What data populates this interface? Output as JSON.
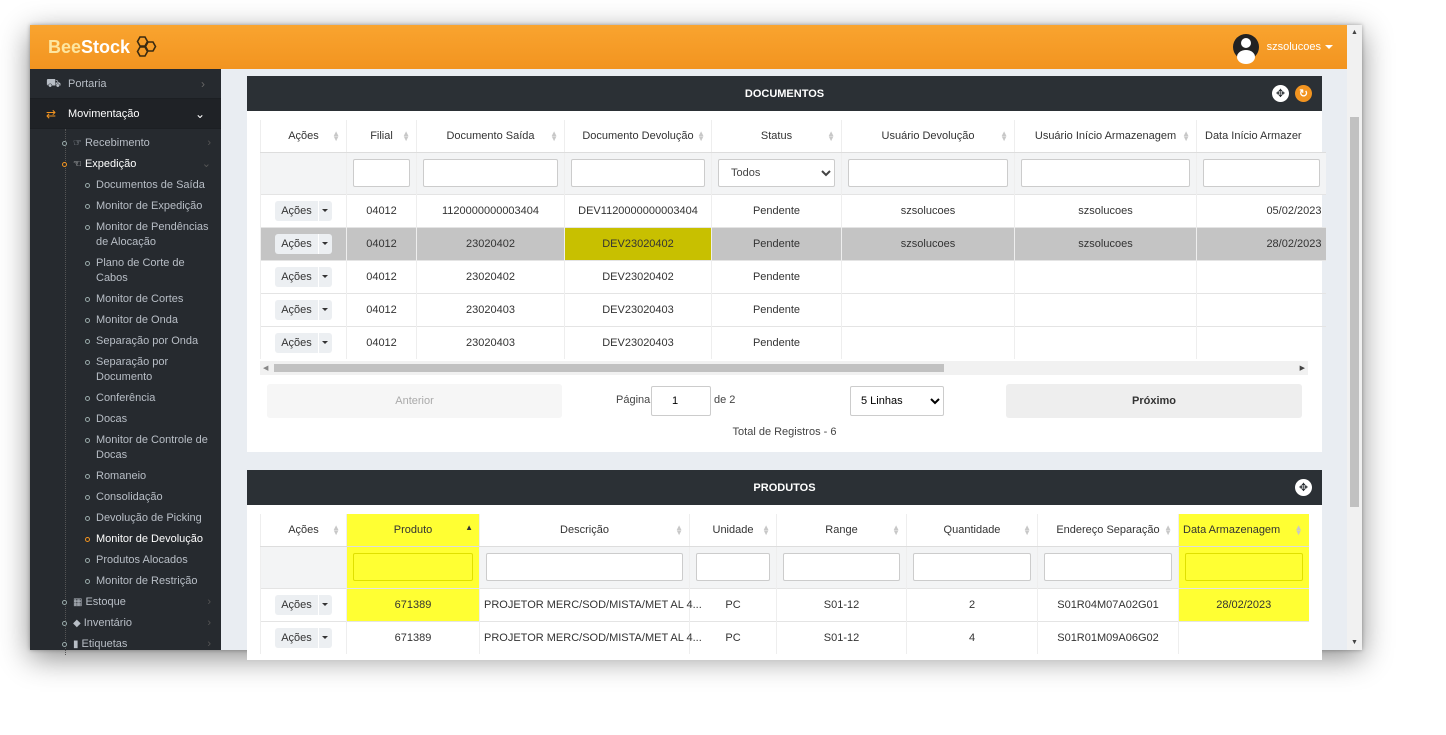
{
  "app": {
    "logo_bee": "Bee",
    "logo_stock": "Stock",
    "user": "szsolucoes"
  },
  "sidebar": {
    "portaria": "Portaria",
    "movimentacao": "Movimentação",
    "recebimento": "Recebimento",
    "expedicao": "Expedição",
    "items": [
      "Documentos de Saída",
      "Monitor de Expedição",
      "Monitor de Pendências de Alocação",
      "Plano de Corte de Cabos",
      "Monitor de Cortes",
      "Monitor de Onda",
      "Separação por Onda",
      "Separação por Documento",
      "Conferência",
      "Docas",
      "Monitor de Controle de Docas",
      "Romaneio",
      "Consolidação",
      "Devolução de Picking",
      "Monitor de Devolução",
      "Produtos Alocados",
      "Monitor de Restrição"
    ],
    "estoque": "Estoque",
    "inventario": "Inventário",
    "etiquetas": "Etiquetas"
  },
  "documentos": {
    "title": "DOCUMENTOS",
    "columns": [
      "Ações",
      "Filial",
      "Documento Saída",
      "Documento Devolução",
      "Status",
      "Usuário Devolução",
      "Usuário Início Armazenagem",
      "Data Início Armazer"
    ],
    "status_filter": "Todos",
    "rows": [
      {
        "acoes": "Ações",
        "filial": "04012",
        "doc_saida": "1120000000003404",
        "doc_dev": "DEV1120000000003404",
        "status": "Pendente",
        "usr_dev": "szsolucoes",
        "usr_ini": "szsolucoes",
        "data": "05/02/2023"
      },
      {
        "acoes": "Ações",
        "filial": "04012",
        "doc_saida": "23020402",
        "doc_dev": "DEV23020402",
        "status": "Pendente",
        "usr_dev": "szsolucoes",
        "usr_ini": "szsolucoes",
        "data": "28/02/2023"
      },
      {
        "acoes": "Ações",
        "filial": "04012",
        "doc_saida": "23020402",
        "doc_dev": "DEV23020402",
        "status": "Pendente",
        "usr_dev": "",
        "usr_ini": "",
        "data": ""
      },
      {
        "acoes": "Ações",
        "filial": "04012",
        "doc_saida": "23020403",
        "doc_dev": "DEV23020403",
        "status": "Pendente",
        "usr_dev": "",
        "usr_ini": "",
        "data": ""
      },
      {
        "acoes": "Ações",
        "filial": "04012",
        "doc_saida": "23020403",
        "doc_dev": "DEV23020403",
        "status": "Pendente",
        "usr_dev": "",
        "usr_ini": "",
        "data": ""
      }
    ],
    "pager": {
      "prev": "Anterior",
      "page_label": "Página",
      "page": "1",
      "of": "de 2",
      "lines": "5 Linhas",
      "next": "Próximo",
      "total": "Total de Registros - 6"
    }
  },
  "produtos": {
    "title": "PRODUTOS",
    "columns": [
      "Ações",
      "Produto",
      "Descrição",
      "Unidade",
      "Range",
      "Quantidade",
      "Endereço Separação",
      "Data Armazenagem"
    ],
    "rows": [
      {
        "acoes": "Ações",
        "produto": "671389",
        "descricao": "PROJETOR MERC/SOD/MISTA/MET AL 4...",
        "unidade": "PC",
        "range": "S01-12",
        "quantidade": "2",
        "endereco": "S01R04M07A02G01",
        "data": "28/02/2023"
      },
      {
        "acoes": "Ações",
        "produto": "671389",
        "descricao": "PROJETOR MERC/SOD/MISTA/MET AL 4...",
        "unidade": "PC",
        "range": "S01-12",
        "quantidade": "4",
        "endereco": "S01R01M09A06G02",
        "data": ""
      }
    ]
  }
}
